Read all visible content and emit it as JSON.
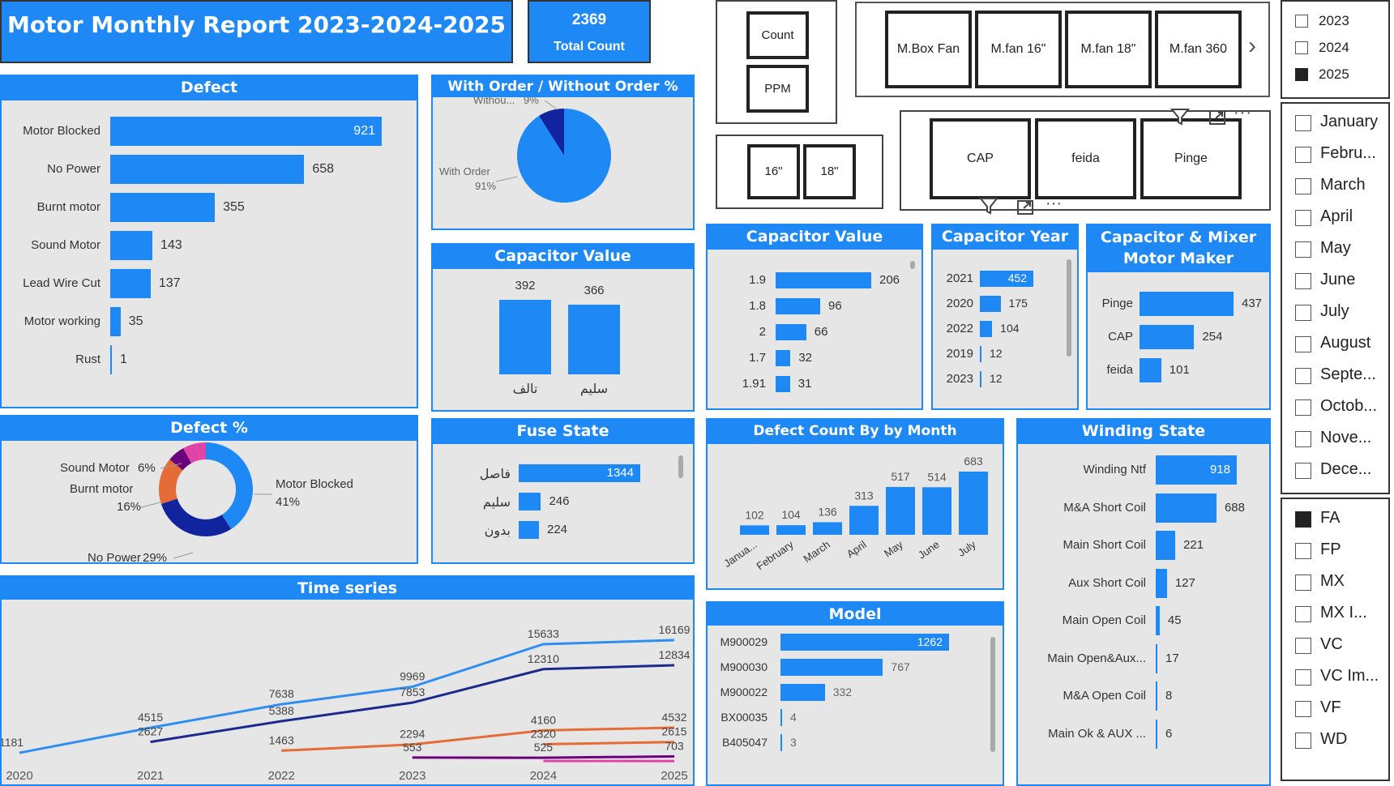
{
  "header": {
    "title": "Motor Monthly Report 2023-2024-2025",
    "total_value": "2369",
    "total_label": "Total Count"
  },
  "buttons": {
    "count": "Count",
    "ppm": "PPM",
    "size_16": "16\"",
    "size_18": "18\"",
    "products": [
      "M.Box Fan",
      "M.fan 16\"",
      "M.fan 18\"",
      "M.fan 360"
    ],
    "makers": [
      "CAP",
      "feida",
      "Pinge"
    ],
    "next": "›"
  },
  "slicers": {
    "years": [
      {
        "label": "2023",
        "checked": false
      },
      {
        "label": "2024",
        "checked": false
      },
      {
        "label": "2025",
        "checked": true
      }
    ],
    "months": [
      {
        "label": "January",
        "checked": false
      },
      {
        "label": "Febru...",
        "checked": false
      },
      {
        "label": "March",
        "checked": false
      },
      {
        "label": "April",
        "checked": false
      },
      {
        "label": "May",
        "checked": false
      },
      {
        "label": "June",
        "checked": false
      },
      {
        "label": "July",
        "checked": false
      },
      {
        "label": "August",
        "checked": false
      },
      {
        "label": "Septe...",
        "checked": false
      },
      {
        "label": "Octob...",
        "checked": false
      },
      {
        "label": "Nove...",
        "checked": false
      },
      {
        "label": "Dece...",
        "checked": false
      }
    ],
    "types": [
      {
        "label": "FA",
        "checked": true
      },
      {
        "label": "FP",
        "checked": false
      },
      {
        "label": "MX",
        "checked": false
      },
      {
        "label": "MX I...",
        "checked": false
      },
      {
        "label": "VC",
        "checked": false
      },
      {
        "label": "VC Im...",
        "checked": false
      },
      {
        "label": "VF",
        "checked": false
      },
      {
        "label": "WD",
        "checked": false
      }
    ]
  },
  "chart_data": [
    {
      "id": "defect",
      "type": "bar",
      "orientation": "horizontal",
      "title": "Defect",
      "categories": [
        "Motor Blocked",
        "No Power",
        "Burnt motor",
        "Sound Motor",
        "Lead Wire Cut",
        "Motor working",
        "Rust"
      ],
      "values": [
        921,
        658,
        355,
        143,
        137,
        35,
        1
      ]
    },
    {
      "id": "order",
      "type": "pie",
      "title": "With Order / Without Order %",
      "labels": [
        "With Order",
        "Withou..."
      ],
      "values": [
        91,
        9
      ],
      "value_labels": [
        "91%",
        "9%"
      ],
      "colors": [
        "#1e88f5",
        "#12239e"
      ]
    },
    {
      "id": "cap_value_state",
      "type": "bar",
      "orientation": "vertical",
      "title": "Capacitor Value",
      "categories": [
        "تالف",
        "سليم"
      ],
      "values": [
        392,
        366
      ]
    },
    {
      "id": "cap_value",
      "type": "bar",
      "orientation": "horizontal",
      "title": "Capacitor Value",
      "categories": [
        "1.9",
        "1.8",
        "2",
        "1.7",
        "1.91"
      ],
      "values": [
        206,
        96,
        66,
        32,
        31
      ]
    },
    {
      "id": "cap_year",
      "type": "bar",
      "orientation": "horizontal",
      "title": "Capacitor Year",
      "categories": [
        "2021",
        "2020",
        "2022",
        "2019",
        "2023"
      ],
      "values": [
        452,
        175,
        104,
        12,
        12
      ]
    },
    {
      "id": "maker",
      "type": "bar",
      "orientation": "horizontal",
      "title": "Capacitor & Mixer Motor Maker",
      "categories": [
        "Pinge",
        "CAP",
        "feida"
      ],
      "values": [
        437,
        254,
        101
      ]
    },
    {
      "id": "defect_pct",
      "type": "pie",
      "title": "Defect %",
      "labels": [
        "Motor Blocked",
        "No Power",
        "Burnt motor",
        "Sound Motor"
      ],
      "values": [
        41,
        29,
        16,
        6
      ],
      "value_labels": [
        "41%",
        "29%",
        "16%",
        "6%"
      ],
      "colors": [
        "#1e88f5",
        "#12239e",
        "#e66c37",
        "#6b007b",
        "#e044a7"
      ]
    },
    {
      "id": "fuse",
      "type": "bar",
      "orientation": "horizontal",
      "title": "Fuse State",
      "categories": [
        "فاصل",
        "سليم",
        "بدون"
      ],
      "values": [
        1344,
        246,
        224
      ]
    },
    {
      "id": "month",
      "type": "bar",
      "orientation": "vertical",
      "title": "Defect Count By by Month",
      "categories": [
        "Janua...",
        "February",
        "March",
        "April",
        "May",
        "June",
        "July"
      ],
      "values": [
        102,
        104,
        136,
        313,
        517,
        514,
        683
      ]
    },
    {
      "id": "winding",
      "type": "bar",
      "orientation": "horizontal",
      "title": "Winding State",
      "categories": [
        "Winding Ntf",
        "M&A Short Coil",
        "Main Short Coil",
        "Aux Short Coil",
        "Main Open Coil",
        "Main Open&Aux...",
        "M&A Open Coil",
        "Main Ok & AUX ..."
      ],
      "values": [
        918,
        688,
        221,
        127,
        45,
        17,
        8,
        6
      ]
    },
    {
      "id": "model",
      "type": "bar",
      "orientation": "horizontal",
      "title": "Model",
      "categories": [
        "M900029",
        "M900030",
        "M900022",
        "BX00035",
        "B405047"
      ],
      "values": [
        1262,
        767,
        332,
        4,
        3
      ]
    },
    {
      "id": "timeseries",
      "type": "line",
      "title": "Time series",
      "x": [
        "2020",
        "2021",
        "2022",
        "2023",
        "2024",
        "2025"
      ],
      "series": [
        {
          "name": "s1",
          "color": "#2f8ff0",
          "points": [
            [
              2020,
              1181
            ],
            [
              2021,
              4515
            ],
            [
              2022,
              7638
            ],
            [
              2023,
              9969
            ],
            [
              2024,
              15633
            ],
            [
              2025,
              16169
            ]
          ]
        },
        {
          "name": "s2",
          "color": "#1c2a8c",
          "points": [
            [
              2021,
              2627
            ],
            [
              2022,
              5388
            ],
            [
              2023,
              7853
            ],
            [
              2024,
              12310
            ],
            [
              2025,
              12834
            ]
          ]
        },
        {
          "name": "s3",
          "color": "#e66c37",
          "points": [
            [
              2022,
              1463
            ],
            [
              2023,
              2294
            ],
            [
              2024,
              4160
            ],
            [
              2025,
              4532
            ]
          ]
        },
        {
          "name": "s4",
          "color": "#e66c37",
          "points": [
            [
              2024,
              2320
            ],
            [
              2025,
              2615
            ]
          ]
        },
        {
          "name": "s5",
          "color": "#6b007b",
          "points": [
            [
              2023,
              553
            ],
            [
              2024,
              525
            ],
            [
              2025,
              703
            ]
          ]
        },
        {
          "name": "s6",
          "color": "#e044a7",
          "points": [
            [
              2024,
              100
            ],
            [
              2025,
              80
            ]
          ]
        }
      ]
    }
  ]
}
